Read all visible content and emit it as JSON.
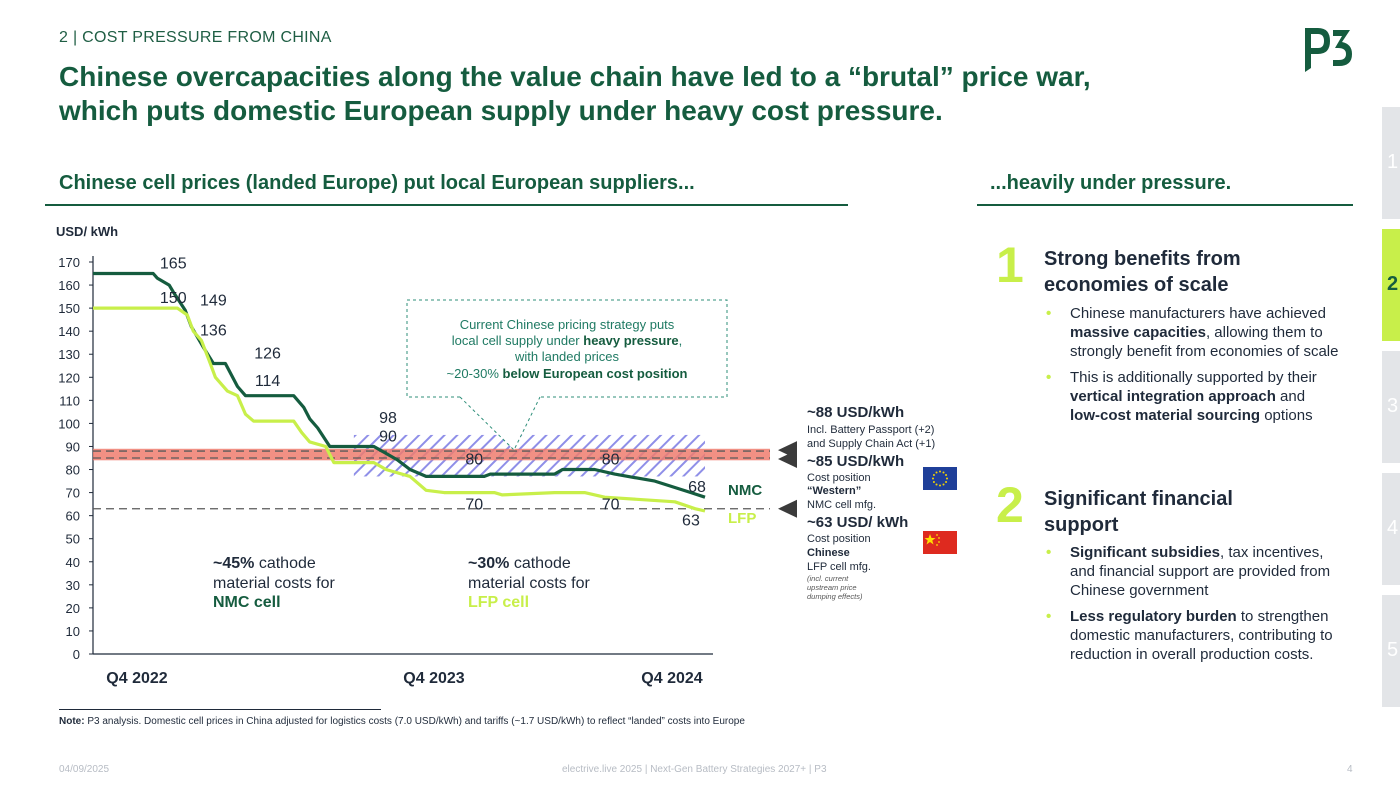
{
  "header": {
    "section_label": "2 | COST PRESSURE FROM CHINA",
    "headline_line1": "Chinese overcapacities along the value chain have led to a “brutal” price war,",
    "headline_line2": "which puts domestic European supply under heavy cost pressure.",
    "logo_text": "P3"
  },
  "left": {
    "heading": "Chinese cell prices (landed Europe) put local European suppliers..."
  },
  "right": {
    "heading": "...heavily under pressure.",
    "blocks": [
      {
        "number": "1",
        "title_line1": "Strong benefits from",
        "title_line2": "economies of scale",
        "bullets": [
          [
            "Chinese manufacturers have achieved ",
            "massive capacities",
            ", allowing them to strongly benefit from economies of scale"
          ],
          [
            "This is additionally supported by their ",
            "vertical integration approach",
            " and ",
            "low-cost material sourcing",
            " options"
          ]
        ]
      },
      {
        "number": "2",
        "title_line1": "Significant financial",
        "title_line2": "support",
        "bullets": [
          [
            "",
            "Significant subsidies",
            ", tax incentives, and financial support are provided from Chinese government"
          ],
          [
            "",
            "Less regulatory burden",
            " to strengthen domestic manufacturers, contributing to reduction in overall production costs."
          ]
        ]
      }
    ]
  },
  "tabs": [
    {
      "label": "1",
      "active": false
    },
    {
      "label": "2",
      "active": true
    },
    {
      "label": "3",
      "active": false
    },
    {
      "label": "4",
      "active": false
    },
    {
      "label": "5",
      "active": false
    }
  ],
  "chart_data": {
    "type": "line",
    "ylabel": "USD/ kWh",
    "ylim": [
      0,
      170
    ],
    "yticks": [
      0,
      10,
      20,
      30,
      40,
      50,
      60,
      70,
      80,
      90,
      100,
      110,
      120,
      130,
      140,
      150,
      160,
      170
    ],
    "x_range": [
      "Q4 2022",
      "Q4 2024"
    ],
    "x_tick_labels": [
      "Q4 2022",
      "Q4 2023",
      "Q4 2024"
    ],
    "grid": false,
    "series": [
      {
        "name": "NMC",
        "color": "#155c3f",
        "points": [
          [
            0.0,
            165
          ],
          [
            0.3,
            165
          ],
          [
            0.32,
            163
          ],
          [
            0.38,
            160
          ],
          [
            0.4,
            157
          ],
          [
            0.46,
            149
          ],
          [
            0.49,
            142
          ],
          [
            0.55,
            133
          ],
          [
            0.6,
            126
          ],
          [
            0.66,
            126
          ],
          [
            0.72,
            116
          ],
          [
            0.76,
            112
          ],
          [
            1.0,
            112
          ],
          [
            1.05,
            107
          ],
          [
            1.08,
            102
          ],
          [
            1.12,
            98
          ],
          [
            1.18,
            90
          ],
          [
            1.4,
            90
          ],
          [
            1.46,
            87
          ],
          [
            1.52,
            84
          ],
          [
            1.58,
            80
          ],
          [
            1.66,
            77
          ],
          [
            1.95,
            77
          ],
          [
            1.98,
            78
          ],
          [
            2.3,
            78
          ],
          [
            2.34,
            80
          ],
          [
            2.5,
            80
          ],
          [
            2.6,
            78
          ],
          [
            2.8,
            75
          ],
          [
            2.98,
            70
          ],
          [
            3.05,
            68
          ]
        ]
      },
      {
        "name": "LFP",
        "color": "#c8ef4a",
        "points": [
          [
            0.0,
            150
          ],
          [
            0.3,
            150
          ],
          [
            0.42,
            150
          ],
          [
            0.47,
            147
          ],
          [
            0.5,
            140
          ],
          [
            0.54,
            136
          ],
          [
            0.58,
            127
          ],
          [
            0.61,
            120
          ],
          [
            0.67,
            114
          ],
          [
            0.72,
            112
          ],
          [
            0.76,
            104
          ],
          [
            0.8,
            101
          ],
          [
            1.0,
            101
          ],
          [
            1.04,
            96
          ],
          [
            1.08,
            92
          ],
          [
            1.16,
            90
          ],
          [
            1.2,
            83
          ],
          [
            1.4,
            83
          ],
          [
            1.46,
            80
          ],
          [
            1.58,
            77
          ],
          [
            1.66,
            71
          ],
          [
            1.75,
            70
          ],
          [
            2.0,
            70
          ],
          [
            2.04,
            69
          ],
          [
            2.3,
            70
          ],
          [
            2.45,
            70
          ],
          [
            2.55,
            68
          ],
          [
            2.9,
            66
          ],
          [
            3.0,
            63
          ],
          [
            3.05,
            62
          ]
        ]
      }
    ],
    "point_labels": [
      {
        "text": "165",
        "x": 0.4,
        "y": 165
      },
      {
        "text": "149",
        "x": 0.6,
        "y": 149
      },
      {
        "text": "126",
        "x": 0.87,
        "y": 126
      },
      {
        "text": "98",
        "x": 1.47,
        "y": 98
      },
      {
        "text": "150",
        "x": 0.4,
        "y": 150
      },
      {
        "text": "136",
        "x": 0.6,
        "y": 136
      },
      {
        "text": "114",
        "x": 0.87,
        "y": 114
      },
      {
        "text": "90",
        "x": 1.47,
        "y": 90
      },
      {
        "text": "80",
        "x": 1.9,
        "y": 80
      },
      {
        "text": "80",
        "x": 2.58,
        "y": 80
      },
      {
        "text": "68",
        "x": 3.01,
        "y": 68
      },
      {
        "text": "70",
        "x": 1.9,
        "y": 70
      },
      {
        "text": "70",
        "x": 2.58,
        "y": 70
      },
      {
        "text": "63",
        "x": 2.98,
        "y": 63
      }
    ],
    "band": {
      "from": 84,
      "to": 89,
      "color": "#ef7c6e"
    },
    "reference_lines": [
      {
        "value": 88,
        "style": "dashed"
      },
      {
        "value": 85,
        "style": "dashed"
      },
      {
        "value": 63,
        "style": "dashed"
      }
    ],
    "hatched_gap": {
      "x_from": 1.3,
      "x_to": 3.05,
      "y_from": 77,
      "y_to": 95
    },
    "series_labels": [
      {
        "text": "NMC",
        "color": "#155c3f"
      },
      {
        "text": "LFP",
        "color": "#c8ef4a"
      }
    ],
    "callout": {
      "line1": "Current Chinese pricing strategy puts",
      "line2a": "local cell supply under ",
      "line2b": "heavy pressure",
      "line2c": ",",
      "line3": "with landed prices",
      "line4a": "~20-30% ",
      "line4b": "below European cost position"
    },
    "cathode_annotations": [
      {
        "pct": "~45%",
        "rest": " cathode",
        "line2": "material costs for",
        "line3": "NMC cell",
        "accent": "#155c3f"
      },
      {
        "pct": "~30%",
        "rest": " cathode",
        "line2": "material costs for",
        "line3": "LFP cell",
        "accent": "#c8ef4a"
      }
    ],
    "right_annotations": [
      {
        "title": "~88 USD/kWh",
        "lines": [
          "Incl. Battery Passport (+2)",
          "and Supply Chain Act (+1)"
        ],
        "flag": ""
      },
      {
        "title": "~85 USD/kWh",
        "lines": [
          "Cost position",
          "“Western”",
          "NMC cell mfg."
        ],
        "flag": "EU"
      },
      {
        "title": "~63 USD/ kWh",
        "lines": [
          "Cost position",
          "Chinese",
          "LFP cell mfg."
        ],
        "small": [
          "(incl. current",
          "upstream price",
          "dumping effects)"
        ],
        "flag": "CN"
      }
    ]
  },
  "footnote": {
    "label": "Note:",
    "text": " P3 analysis. Domestic cell prices in China adjusted for logistics costs (7.0 USD/kWh) and tariffs (~1.7 USD/kWh) to reflect “landed” costs into Europe"
  },
  "footer": {
    "date": "04/09/2025",
    "event": "electrive.live 2025 | Next-Gen Battery Strategies 2027+ | P3",
    "page": "4"
  },
  "colors": {
    "brand_green": "#155c3f",
    "accent_lime": "#c8ef4a",
    "band_red": "#ef7c6e",
    "hatch_blue": "#8f8fe8"
  }
}
